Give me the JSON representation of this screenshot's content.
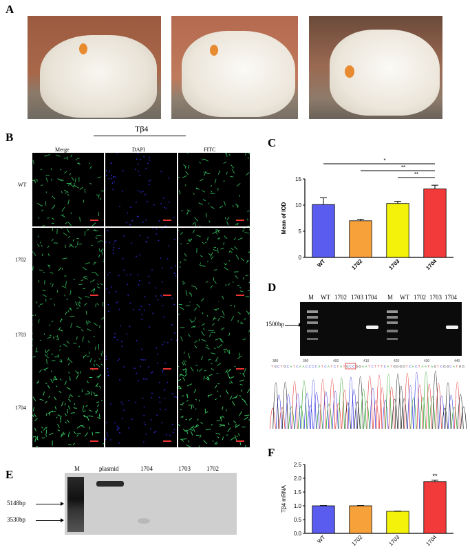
{
  "panels": {
    "A": "A",
    "B": "B",
    "C": "C",
    "D": "D",
    "E": "E",
    "F": "F"
  },
  "micro": {
    "group_label": "Tβ4",
    "columns": [
      "Merge",
      "DAPI",
      "FITC"
    ],
    "rows": [
      "WT",
      "1702",
      "1703",
      "1704"
    ]
  },
  "gelD": {
    "lanes_left": [
      "M",
      "WT",
      "1702",
      "1703",
      "1704"
    ],
    "lanes_right": [
      "M",
      "WT",
      "1702",
      "1703",
      "1704"
    ],
    "marker": "1500bp",
    "seq_positions": [
      "380",
      "390",
      "400",
      "410",
      "420",
      "430",
      "440"
    ],
    "seq_text": "TGCTGCATCAACCCCATCATCTATGCCGGAATCTTTCATGGGGTCACTAATAGTCGGCATGG"
  },
  "gelE": {
    "lanes": [
      "M",
      "plasmid",
      "1704",
      "1703",
      "1702"
    ],
    "markers": [
      "5148bp",
      "3530bp"
    ]
  },
  "chart_data": [
    {
      "type": "bar",
      "categories": [
        "WT",
        "1702",
        "1703",
        "1704"
      ],
      "values": [
        10.1,
        7.0,
        10.3,
        13.1
      ],
      "errors": [
        1.3,
        0.3,
        0.4,
        0.7
      ],
      "ylabel": "Mean of IOD",
      "ylim": [
        0,
        15
      ],
      "yticks": [
        "0",
        "5",
        "10",
        "15"
      ],
      "colors": [
        "#5a5cf0",
        "#f7a13a",
        "#f4f20a",
        "#f23a3a"
      ],
      "significance": [
        {
          "from": "WT",
          "to": "1704",
          "label": "*"
        },
        {
          "from": "1702",
          "to": "1704",
          "label": "**"
        },
        {
          "from": "1703",
          "to": "1704",
          "label": "**"
        }
      ]
    },
    {
      "type": "bar",
      "categories": [
        "WT",
        "1702",
        "1703",
        "1704"
      ],
      "values": [
        1.0,
        1.0,
        0.8,
        1.88
      ],
      "errors": [
        0.01,
        0.01,
        0.01,
        0.05
      ],
      "ylabel": "Tβ4 mRNA",
      "ylim": [
        0,
        2.5
      ],
      "yticks": [
        "0.0",
        "0.5",
        "1.0",
        "1.5",
        "2.0",
        "2.5"
      ],
      "colors": [
        "#5a5cf0",
        "#f7a13a",
        "#f4f20a",
        "#f23a3a"
      ],
      "annotation": "**"
    }
  ]
}
